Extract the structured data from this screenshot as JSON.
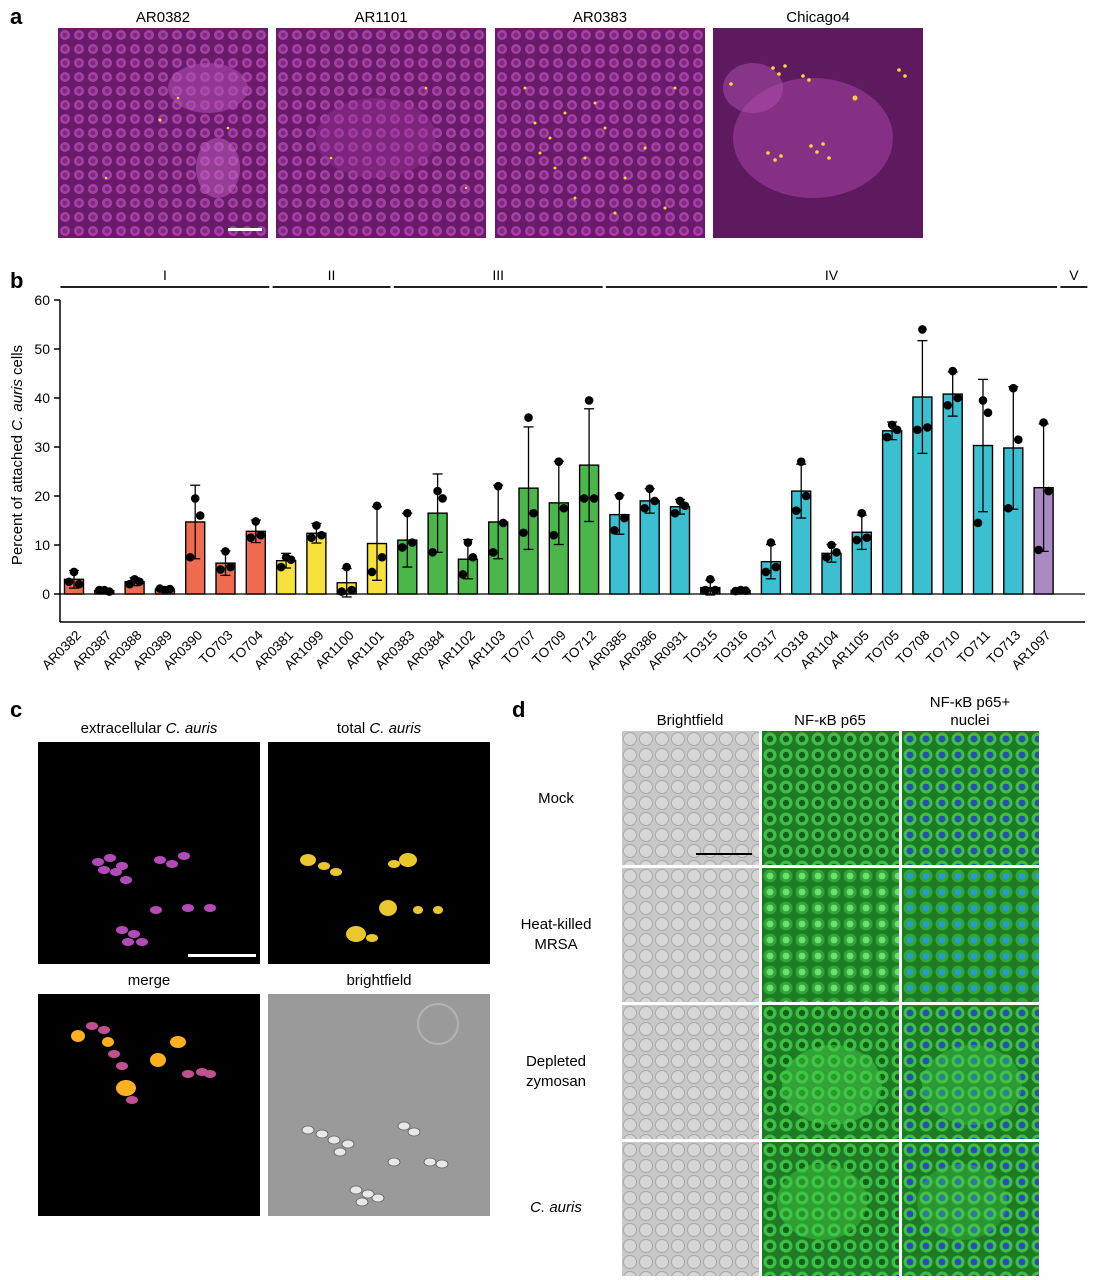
{
  "panel_letters": {
    "a": "a",
    "b": "b",
    "c": "c",
    "d": "d"
  },
  "panel_a": {
    "titles": [
      "AR0382",
      "AR1101",
      "AR0383",
      "Chicago4"
    ]
  },
  "chart_data": {
    "type": "bar",
    "ylabel_prefix": "Percent of attached ",
    "ylabel_italic": "C. auris",
    "ylabel_suffix": " cells",
    "ylim": [
      0,
      60
    ],
    "yticks": [
      0,
      10,
      20,
      30,
      40,
      50,
      60
    ],
    "clade_groups": [
      {
        "name": "I",
        "start": 0,
        "end": 6
      },
      {
        "name": "II",
        "start": 7,
        "end": 10
      },
      {
        "name": "III",
        "start": 11,
        "end": 17
      },
      {
        "name": "IV",
        "start": 18,
        "end": 32
      },
      {
        "name": "V",
        "start": 33,
        "end": 33
      }
    ],
    "colors": {
      "I": "#ef6b50",
      "II": "#f6e23a",
      "III": "#4bb64a",
      "IV": "#3bbfd1",
      "V": "#a98ac4"
    },
    "bars": [
      {
        "label": "AR0382",
        "clade": "I",
        "value": 3.0,
        "err": 1.8,
        "points": [
          4.5,
          2.0,
          2.5
        ]
      },
      {
        "label": "AR0387",
        "clade": "I",
        "value": 0.7,
        "err": 0.3,
        "points": [
          0.8,
          0.5,
          0.8
        ]
      },
      {
        "label": "AR0388",
        "clade": "I",
        "value": 2.5,
        "err": 0.8,
        "points": [
          3.0,
          2.5,
          2.0
        ]
      },
      {
        "label": "AR0389",
        "clade": "I",
        "value": 1.0,
        "err": 0.3,
        "points": [
          0.8,
          1.0,
          1.1
        ]
      },
      {
        "label": "AR0390",
        "clade": "I",
        "value": 14.7,
        "err": 7.5,
        "points": [
          19.5,
          16.0,
          7.5
        ]
      },
      {
        "label": "TO703",
        "clade": "I",
        "value": 6.3,
        "err": 2.5,
        "points": [
          8.7,
          5.5,
          5.0
        ]
      },
      {
        "label": "TO704",
        "clade": "I",
        "value": 12.8,
        "err": 2.3,
        "points": [
          14.8,
          12.0,
          11.5
        ]
      },
      {
        "label": "AR0381",
        "clade": "II",
        "value": 6.8,
        "err": 1.5,
        "points": [
          7.5,
          7.0,
          5.5
        ]
      },
      {
        "label": "AR1099",
        "clade": "II",
        "value": 12.4,
        "err": 2.0,
        "points": [
          14.0,
          12.0,
          11.5
        ]
      },
      {
        "label": "AR1100",
        "clade": "II",
        "value": 2.3,
        "err": 2.9,
        "points": [
          5.5,
          0.8,
          0.5
        ]
      },
      {
        "label": "AR1101",
        "clade": "II",
        "value": 10.3,
        "err": 7.5,
        "points": [
          18.0,
          7.5,
          4.5
        ]
      },
      {
        "label": "AR0383",
        "clade": "III",
        "value": 11.0,
        "err": 5.5,
        "points": [
          16.5,
          10.5,
          9.5
        ]
      },
      {
        "label": "AR0384",
        "clade": "III",
        "value": 16.5,
        "err": 8.0,
        "points": [
          21.0,
          19.5,
          8.5
        ]
      },
      {
        "label": "AR1102",
        "clade": "III",
        "value": 7.1,
        "err": 4.0,
        "points": [
          10.5,
          7.5,
          4.0
        ]
      },
      {
        "label": "AR1103",
        "clade": "III",
        "value": 14.7,
        "err": 7.5,
        "points": [
          22.0,
          14.5,
          8.5
        ]
      },
      {
        "label": "TO707",
        "clade": "III",
        "value": 21.6,
        "err": 12.5,
        "points": [
          36.0,
          16.5,
          12.5
        ]
      },
      {
        "label": "TO709",
        "clade": "III",
        "value": 18.6,
        "err": 8.5,
        "points": [
          27.0,
          17.5,
          12.0
        ]
      },
      {
        "label": "TO712",
        "clade": "III",
        "value": 26.3,
        "err": 11.5,
        "points": [
          39.5,
          19.5,
          19.5
        ]
      },
      {
        "label": "AR0385",
        "clade": "IV",
        "value": 16.2,
        "err": 4.0,
        "points": [
          20.0,
          15.5,
          13.0
        ]
      },
      {
        "label": "AR0386",
        "clade": "IV",
        "value": 19.0,
        "err": 2.5,
        "points": [
          21.5,
          19.0,
          17.5
        ]
      },
      {
        "label": "AR0931",
        "clade": "IV",
        "value": 17.8,
        "err": 1.5,
        "points": [
          19.0,
          18.0,
          16.5
        ]
      },
      {
        "label": "TO315",
        "clade": "IV",
        "value": 1.3,
        "err": 1.5,
        "points": [
          3.0,
          0.8,
          0.8
        ]
      },
      {
        "label": "TO316",
        "clade": "IV",
        "value": 0.7,
        "err": 0.2,
        "points": [
          0.8,
          0.7,
          0.6
        ]
      },
      {
        "label": "TO317",
        "clade": "IV",
        "value": 6.6,
        "err": 3.5,
        "points": [
          10.5,
          5.5,
          4.5
        ]
      },
      {
        "label": "TO318",
        "clade": "IV",
        "value": 21.0,
        "err": 5.5,
        "points": [
          27.0,
          20.0,
          17.0
        ]
      },
      {
        "label": "AR1104",
        "clade": "IV",
        "value": 8.3,
        "err": 1.8,
        "points": [
          10.0,
          8.5,
          7.5
        ]
      },
      {
        "label": "AR1105",
        "clade": "IV",
        "value": 12.6,
        "err": 3.5,
        "points": [
          16.5,
          11.5,
          11.0
        ]
      },
      {
        "label": "TO705",
        "clade": "IV",
        "value": 33.3,
        "err": 1.8,
        "points": [
          34.5,
          33.5,
          32.0
        ]
      },
      {
        "label": "TO708",
        "clade": "IV",
        "value": 40.2,
        "err": 11.5,
        "points": [
          54.0,
          34.0,
          33.5
        ]
      },
      {
        "label": "TO710",
        "clade": "IV",
        "value": 40.8,
        "err": 4.5,
        "points": [
          45.5,
          40.0,
          38.5
        ]
      },
      {
        "label": "TO711",
        "clade": "IV",
        "value": 30.3,
        "err": 13.5,
        "points": [
          39.5,
          37.0,
          14.5
        ]
      },
      {
        "label": "TO713",
        "clade": "IV",
        "value": 29.8,
        "err": 12.5,
        "points": [
          42.0,
          31.5,
          17.5
        ]
      },
      {
        "label": "AR1097",
        "clade": "V",
        "value": 21.7,
        "err": 13.0,
        "points": [
          35.0,
          21.0,
          9.0
        ]
      }
    ]
  },
  "panel_c": {
    "titles": {
      "extracellular_prefix": "extracellular ",
      "extracellular_italic": "C. auris",
      "total_prefix": "total ",
      "total_italic": "C. auris",
      "merge": "merge",
      "brightfield": "brightfield"
    }
  },
  "panel_d": {
    "col_titles": {
      "brightfield": "Brightfield",
      "p65": "NF-κB p65",
      "p65_nuclei_1": "NF-κB p65+",
      "p65_nuclei_2": "nuclei"
    },
    "rows": {
      "mock": "Mock",
      "mrsa_1": "Heat-killed",
      "mrsa_2": "MRSA",
      "zym_1": "Depleted",
      "zym_2": "zymosan",
      "cauris": "C. auris"
    }
  }
}
